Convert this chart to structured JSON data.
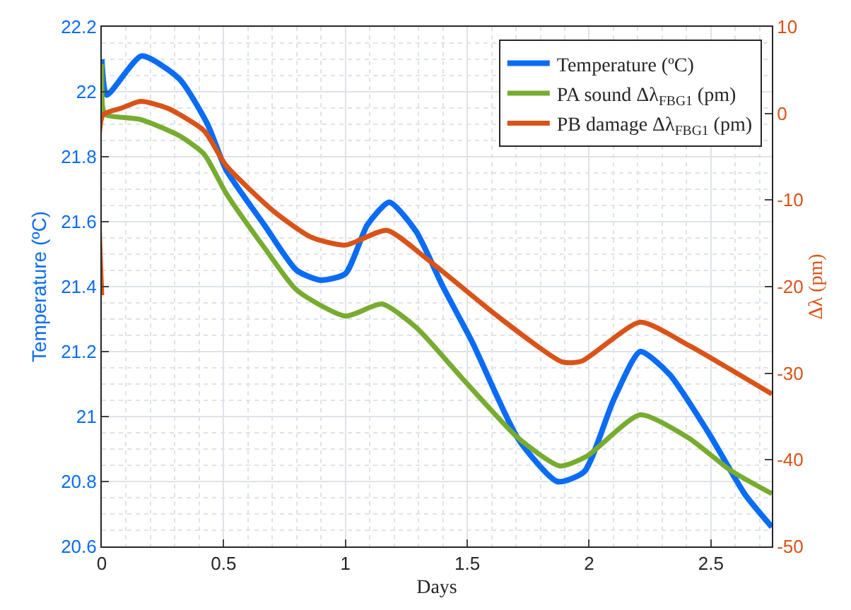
{
  "chart_data": {
    "type": "line",
    "xlabel": "Days",
    "ylabel": "Temperature (ºC)",
    "y2label": "Δλ (pm)",
    "xlim": [
      0,
      2.75
    ],
    "xticks": [
      0,
      0.5,
      1,
      1.5,
      2,
      2.5
    ],
    "ylim": [
      20.6,
      22.2
    ],
    "yticks": [
      20.6,
      20.8,
      21,
      21.2,
      21.4,
      21.6,
      21.8,
      22,
      22.2
    ],
    "y2lim": [
      -50,
      10
    ],
    "y2ticks": [
      -50,
      -40,
      -30,
      -20,
      -10,
      0,
      10
    ],
    "grid": true,
    "legend": "top right",
    "line_style": "solid",
    "marker": "none",
    "series": [
      {
        "name": "Temperature (ºC)",
        "color": "#0a6cf5",
        "x": [
          0,
          0.02,
          0.163,
          0.318,
          0.434,
          0.51,
          0.667,
          0.8,
          0.9,
          1.0,
          1.09,
          1.18,
          1.29,
          1.4,
          1.52,
          1.71,
          1.87,
          1.98,
          2.1,
          2.21,
          2.33,
          2.49,
          2.64,
          2.75
        ],
        "values": [
          22.1,
          21.99,
          22.11,
          22.04,
          21.9,
          21.76,
          21.59,
          21.45,
          21.42,
          21.44,
          21.59,
          21.66,
          21.57,
          21.4,
          21.23,
          20.93,
          20.8,
          20.83,
          21.05,
          21.2,
          21.13,
          20.95,
          20.76,
          20.66
        ]
      },
      {
        "name": "PA sound Δλ$_{FBG1}$ (pm)",
        "color": "#77ac30",
        "axis": "y2",
        "x": [
          0,
          0.005,
          0.02,
          0.16,
          0.32,
          0.42,
          0.51,
          0.67,
          0.8,
          1.0,
          1.15,
          1.29,
          1.48,
          1.71,
          1.88,
          1.99,
          2.21,
          2.41,
          2.58,
          2.75
        ],
        "values": [
          5.7,
          0.5,
          -0.2,
          -0.7,
          -2.6,
          -4.7,
          -9.2,
          -15.6,
          -20.4,
          -23.4,
          -22.0,
          -24.7,
          -30.6,
          -37.5,
          -40.7,
          -39.6,
          -34.8,
          -37.5,
          -41.2,
          -43.9
        ]
      },
      {
        "name": "PB damage Δλ$_{FBG1}$ (pm)",
        "color": "#d95319",
        "axis": "y2",
        "x": [
          0,
          0.005,
          0.08,
          0.16,
          0.27,
          0.42,
          0.51,
          0.71,
          0.86,
          1.0,
          1.17,
          1.33,
          1.54,
          1.61,
          1.89,
          1.97,
          2.21,
          2.41,
          2.75
        ],
        "values": [
          -21,
          -0.2,
          0.6,
          1.4,
          0.6,
          -2.0,
          -6.0,
          -11.4,
          -14.3,
          -15.2,
          -13.5,
          -16.7,
          -21.5,
          -23.1,
          -28.7,
          -28.6,
          -24.1,
          -26.8,
          -32.4
        ]
      }
    ]
  }
}
